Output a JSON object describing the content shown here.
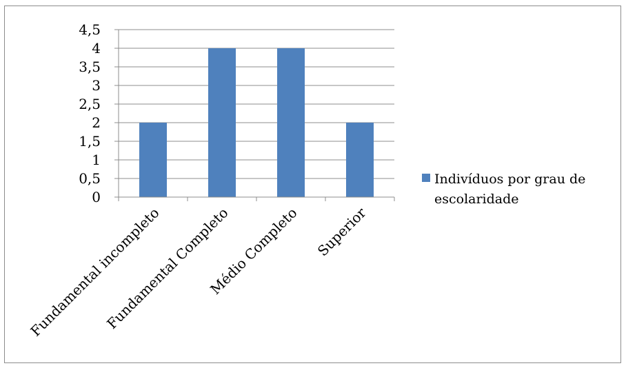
{
  "chart_data": {
    "type": "bar",
    "categories": [
      "Fundamental incompleto",
      "Fundamental Completo",
      "Médio Completo",
      "Superior"
    ],
    "series": [
      {
        "name": "Indivíduos por grau de escolaridade",
        "values": [
          2,
          4,
          4,
          2
        ],
        "color": "#4f81bd"
      }
    ],
    "ylim": [
      0,
      4.5
    ],
    "yticks": [
      "0",
      "0,5",
      "1",
      "1,5",
      "2",
      "2,5",
      "3",
      "3,5",
      "4",
      "4,5"
    ],
    "grid": true,
    "legend_position": "right"
  }
}
